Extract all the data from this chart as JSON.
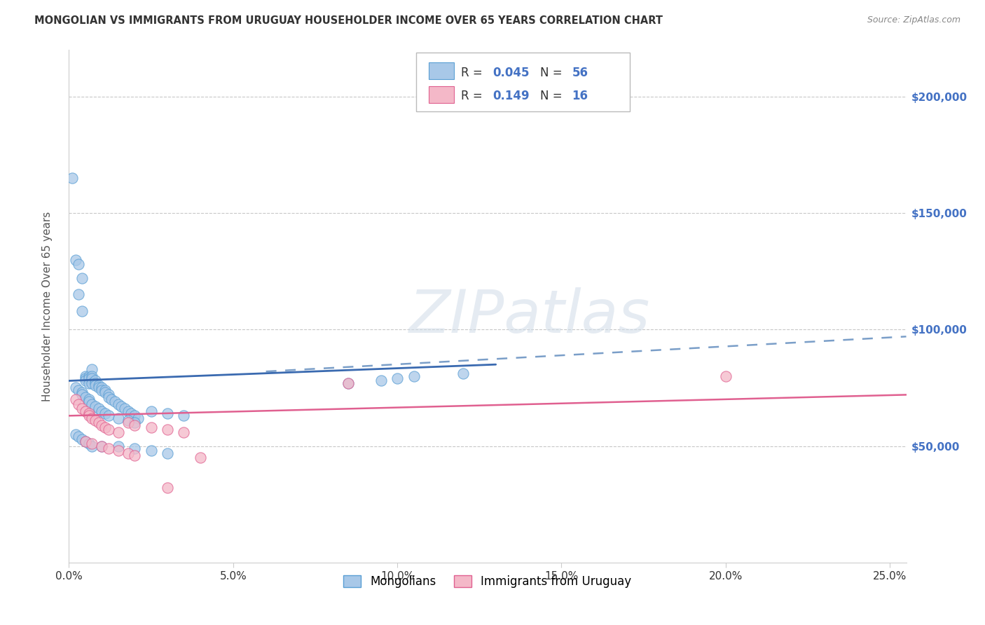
{
  "title": "MONGOLIAN VS IMMIGRANTS FROM URUGUAY HOUSEHOLDER INCOME OVER 65 YEARS CORRELATION CHART",
  "source": "Source: ZipAtlas.com",
  "ylabel": "Householder Income Over 65 years",
  "watermark_text": "ZIPatlas",
  "mongolian_color": "#a8c8e8",
  "mongolian_edge": "#5a9fd4",
  "uruguay_color": "#f4b8c8",
  "uruguay_edge": "#e06090",
  "mongolian_R": "0.045",
  "mongolian_N": "56",
  "uruguay_R": "0.149",
  "uruguay_N": "16",
  "xlim": [
    0.0,
    0.255
  ],
  "ylim": [
    0,
    220000
  ],
  "xtick_vals": [
    0.0,
    0.05,
    0.1,
    0.15,
    0.2,
    0.25
  ],
  "xtick_labels": [
    "0.0%",
    "5.0%",
    "10.0%",
    "15.0%",
    "20.0%",
    "25.0%"
  ],
  "ytick_vals": [
    0,
    50000,
    100000,
    150000,
    200000
  ],
  "ytick_labels_right": [
    "",
    "$50,000",
    "$100,000",
    "$150,000",
    "$200,000"
  ],
  "blue_line_x": [
    0.0,
    0.13
  ],
  "blue_line_y": [
    78000,
    85000
  ],
  "dashed_line_x": [
    0.06,
    0.255
  ],
  "dashed_line_y": [
    82000,
    97000
  ],
  "pink_line_x": [
    0.0,
    0.255
  ],
  "pink_line_y": [
    63000,
    72000
  ],
  "mongolian_x": [
    0.001,
    0.002,
    0.003,
    0.003,
    0.004,
    0.004,
    0.005,
    0.005,
    0.005,
    0.006,
    0.006,
    0.006,
    0.007,
    0.007,
    0.007,
    0.007,
    0.008,
    0.008,
    0.008,
    0.009,
    0.009,
    0.01,
    0.01,
    0.011,
    0.011,
    0.012,
    0.012,
    0.013,
    0.014,
    0.015,
    0.016,
    0.017,
    0.018,
    0.019,
    0.02,
    0.021,
    0.002,
    0.003,
    0.004,
    0.004,
    0.005,
    0.006,
    0.006,
    0.007,
    0.008,
    0.009,
    0.01,
    0.011,
    0.012,
    0.015,
    0.018,
    0.02,
    0.025,
    0.03,
    0.035
  ],
  "mongolian_y": [
    165000,
    130000,
    128000,
    115000,
    122000,
    108000,
    80000,
    79000,
    78000,
    80000,
    79000,
    77000,
    83000,
    80000,
    79000,
    77000,
    78000,
    77000,
    76000,
    76000,
    75000,
    75000,
    74000,
    74000,
    73000,
    72000,
    71000,
    70000,
    69000,
    68000,
    67000,
    66000,
    65000,
    64000,
    63000,
    62000,
    75000,
    74000,
    73000,
    72000,
    71000,
    70000,
    69000,
    68000,
    67000,
    66000,
    65000,
    64000,
    63000,
    62000,
    61000,
    60000,
    65000,
    64000,
    63000
  ],
  "mongolian_x2": [
    0.002,
    0.003,
    0.004,
    0.005,
    0.006,
    0.007,
    0.01,
    0.015,
    0.02,
    0.025,
    0.03,
    0.085,
    0.095,
    0.1,
    0.105,
    0.12
  ],
  "mongolian_y2": [
    55000,
    54000,
    53000,
    52000,
    51000,
    50000,
    50000,
    50000,
    49000,
    48000,
    47000,
    77000,
    78000,
    79000,
    80000,
    81000
  ],
  "uruguay_x": [
    0.002,
    0.003,
    0.004,
    0.005,
    0.006,
    0.006,
    0.007,
    0.008,
    0.009,
    0.01,
    0.011,
    0.012,
    0.015,
    0.018,
    0.02,
    0.025,
    0.03,
    0.035,
    0.085,
    0.2
  ],
  "uruguay_y": [
    70000,
    68000,
    66000,
    65000,
    64000,
    63000,
    62000,
    61000,
    60000,
    59000,
    58000,
    57000,
    56000,
    60000,
    59000,
    58000,
    57000,
    56000,
    77000,
    80000
  ],
  "uruguay_low_x": [
    0.005,
    0.007,
    0.01,
    0.012,
    0.015,
    0.018,
    0.02,
    0.03,
    0.04
  ],
  "uruguay_low_y": [
    52000,
    51000,
    50000,
    49000,
    48000,
    47000,
    46000,
    32000,
    45000
  ]
}
